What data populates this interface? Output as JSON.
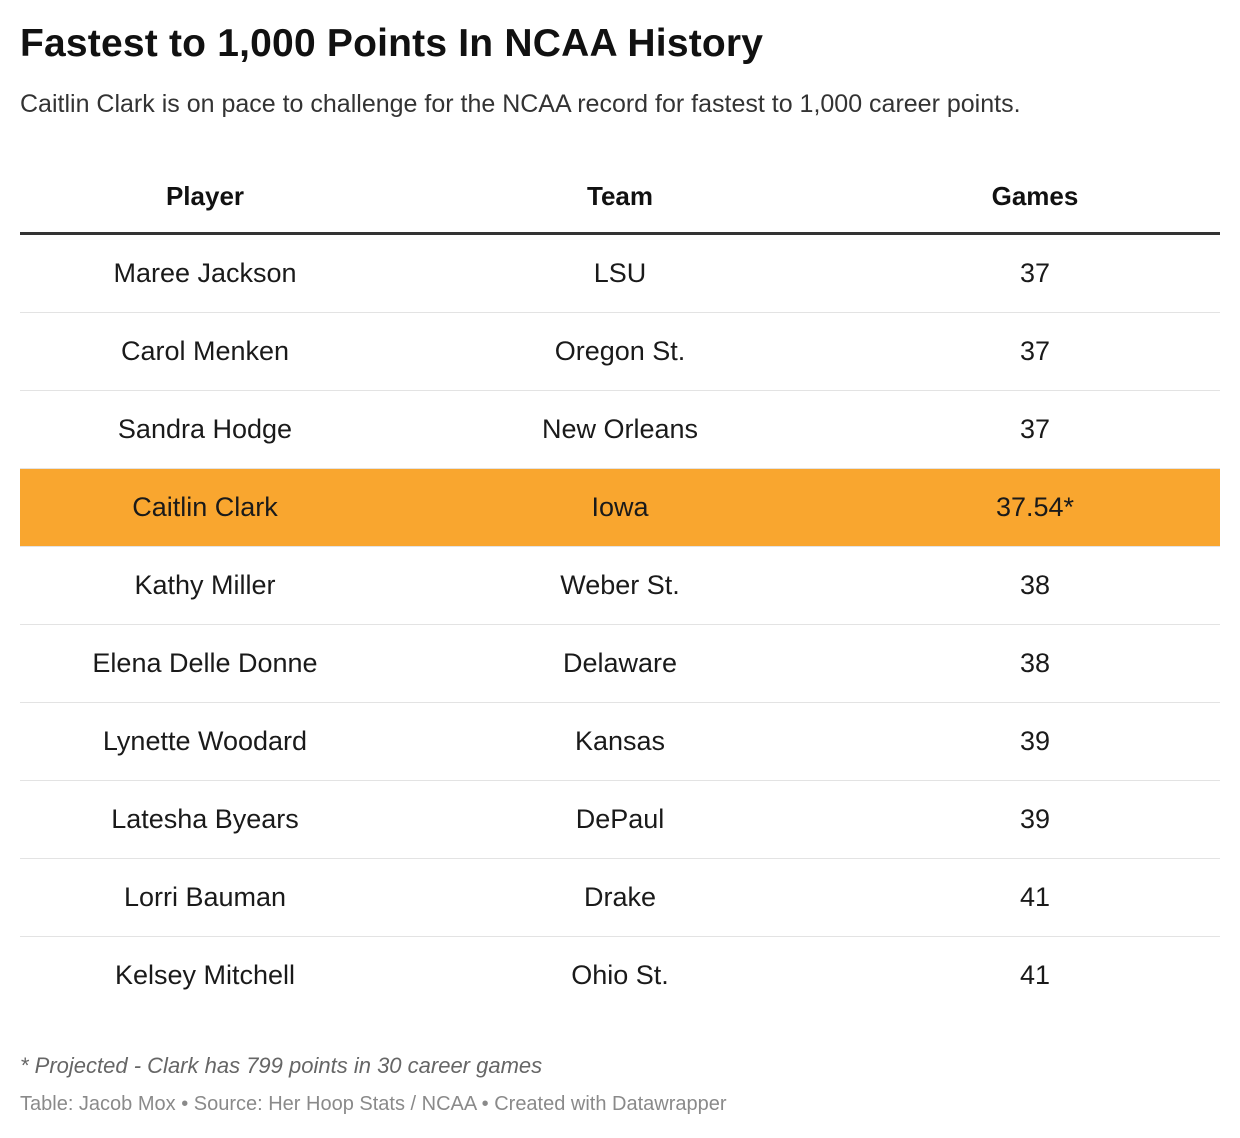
{
  "chart_data": {
    "type": "table",
    "title": "Fastest to 1,000 Points In NCAA History",
    "subtitle": "Caitlin Clark is on pace to challenge for the NCAA record for fastest to 1,000 career points.",
    "columns": [
      "Player",
      "Team",
      "Games"
    ],
    "rows": [
      {
        "player": "Maree Jackson",
        "team": "LSU",
        "games": "37",
        "highlight": false
      },
      {
        "player": "Carol Menken",
        "team": "Oregon St.",
        "games": "37",
        "highlight": false
      },
      {
        "player": "Sandra Hodge",
        "team": "New Orleans",
        "games": "37",
        "highlight": false
      },
      {
        "player": "Caitlin Clark",
        "team": "Iowa",
        "games": "37.54*",
        "highlight": true
      },
      {
        "player": "Kathy Miller",
        "team": "Weber St.",
        "games": "38",
        "highlight": false
      },
      {
        "player": "Elena Delle Donne",
        "team": "Delaware",
        "games": "38",
        "highlight": false
      },
      {
        "player": "Lynette Woodard",
        "team": "Kansas",
        "games": "39",
        "highlight": false
      },
      {
        "player": "Latesha Byears",
        "team": "DePaul",
        "games": "39",
        "highlight": false
      },
      {
        "player": "Lorri Bauman",
        "team": "Drake",
        "games": "41",
        "highlight": false
      },
      {
        "player": "Kelsey Mitchell",
        "team": "Ohio St.",
        "games": "41",
        "highlight": false
      }
    ],
    "note": "* Projected - Clark has 799 points in 30 career games",
    "credit": "Table: Jacob Mox • Source: Her Hoop Stats / NCAA • Created with Datawrapper",
    "highlight_color": "#f9a62f"
  }
}
